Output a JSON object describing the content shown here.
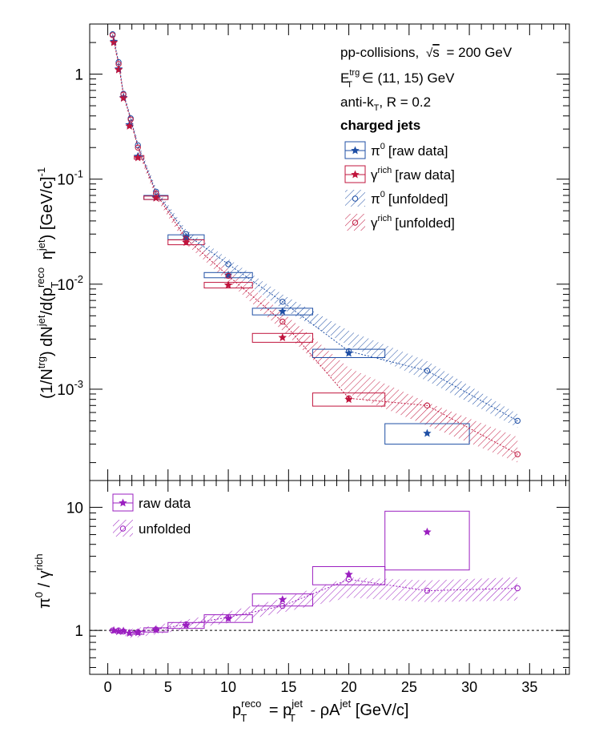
{
  "colors": {
    "pi0": "#1f4fa5",
    "gamma": "#c0143c",
    "ratio": "#9b1fc0",
    "axis": "#000000"
  },
  "info": {
    "line1": "pp-collisions,",
    "line1_energy": "= 200 GeV",
    "sqrt_s": "s",
    "trg_pre": "E",
    "trg_sub": "T",
    "trg_sup": "trg",
    "trg_post": "∈ (11, 15) GeV",
    "algo_pre": "anti-k",
    "algo_sub": "T",
    "algo_post": ", R = 0.2",
    "jets": "charged jets"
  },
  "legend_top": [
    {
      "sym": "π",
      "sup": "0",
      "txt": "[raw data]"
    },
    {
      "sym": "γ",
      "sup": "rich",
      "txt": "[raw data]"
    },
    {
      "sym": "π",
      "sup": "0",
      "txt": "[unfolded]"
    },
    {
      "sym": "γ",
      "sup": "rich",
      "txt": "[unfolded]"
    }
  ],
  "legend_bottom": [
    "raw data",
    "unfolded"
  ],
  "y_label_top": "(1/N^trg) dN^jet/d(p_T^reco η^jet) [GeV/c]^-1",
  "y_label_bottom": "π^0 / γ^rich",
  "x_label": "p_T^reco = p_T^jet - ρA^jet [GeV/c]",
  "chart_data": [
    {
      "type": "scatter",
      "xlim": [
        -1.5,
        38.3
      ],
      "ylim": [
        0.000135,
        3.0
      ],
      "yscale": "log",
      "x_ticks": [
        0,
        5,
        10,
        15,
        20,
        25,
        30,
        35
      ],
      "y_ticks": [
        {
          "value": 1,
          "label": "1"
        },
        {
          "value": 0.1,
          "label": "10^-1"
        },
        {
          "value": 0.01,
          "label": "10^-2"
        },
        {
          "value": 0.001,
          "label": "10^-3"
        }
      ],
      "series": [
        {
          "name": "π0 [raw data]",
          "marker": "star",
          "color_key": "pi0",
          "points": [
            {
              "x": 0.5,
              "y": 2.05
            },
            {
              "x": 0.9,
              "y": 1.12
            },
            {
              "x": 1.3,
              "y": 0.6
            },
            {
              "x": 1.8,
              "y": 0.33
            },
            {
              "x": 2.5,
              "y": 0.165
            },
            {
              "x": 4.0,
              "y": 0.067
            },
            {
              "x": 6.5,
              "y": 0.028
            },
            {
              "x": 10.0,
              "y": 0.0122
            },
            {
              "x": 14.5,
              "y": 0.0055
            },
            {
              "x": 20.0,
              "y": 0.0022
            },
            {
              "x": 26.5,
              "y": 0.00038
            }
          ],
          "boxes": [
            {
              "x1": 3.0,
              "x2": 5.0,
              "ylo": 0.064,
              "yhi": 0.07
            },
            {
              "x1": 5.0,
              "x2": 8.0,
              "ylo": 0.0265,
              "yhi": 0.0295
            },
            {
              "x1": 8.0,
              "x2": 12.0,
              "ylo": 0.0115,
              "yhi": 0.0129
            },
            {
              "x1": 12.0,
              "x2": 17.0,
              "ylo": 0.0051,
              "yhi": 0.0059
            },
            {
              "x1": 17.0,
              "x2": 23.0,
              "ylo": 0.002,
              "yhi": 0.0024
            },
            {
              "x1": 23.0,
              "x2": 30.0,
              "ylo": 0.0003,
              "yhi": 0.00047
            }
          ]
        },
        {
          "name": "γrich [raw data]",
          "marker": "star",
          "color_key": "gamma",
          "points": [
            {
              "x": 0.5,
              "y": 2.0
            },
            {
              "x": 0.9,
              "y": 1.1
            },
            {
              "x": 1.3,
              "y": 0.59
            },
            {
              "x": 1.8,
              "y": 0.32
            },
            {
              "x": 2.5,
              "y": 0.16
            },
            {
              "x": 4.0,
              "y": 0.066
            },
            {
              "x": 6.5,
              "y": 0.025
            },
            {
              "x": 10.0,
              "y": 0.0098
            },
            {
              "x": 14.5,
              "y": 0.0031
            },
            {
              "x": 20.0,
              "y": 0.0008
            }
          ],
          "boxes": [
            {
              "x1": 2.2,
              "x2": 3.0,
              "ylo": 0.155,
              "yhi": 0.168
            },
            {
              "x1": 3.0,
              "x2": 5.0,
              "ylo": 0.064,
              "yhi": 0.069
            },
            {
              "x1": 5.0,
              "x2": 8.0,
              "ylo": 0.0237,
              "yhi": 0.0264
            },
            {
              "x1": 8.0,
              "x2": 12.0,
              "ylo": 0.0092,
              "yhi": 0.0104
            },
            {
              "x1": 12.0,
              "x2": 17.0,
              "ylo": 0.0028,
              "yhi": 0.0034
            },
            {
              "x1": 17.0,
              "x2": 23.0,
              "ylo": 0.00069,
              "yhi": 0.00092
            }
          ]
        },
        {
          "name": "π0 [unfolded]",
          "marker": "open-circle",
          "color_key": "pi0",
          "points": [
            {
              "x": 0.4,
              "y": 2.4
            },
            {
              "x": 0.9,
              "y": 1.3
            },
            {
              "x": 1.3,
              "y": 0.65
            },
            {
              "x": 1.9,
              "y": 0.38
            },
            {
              "x": 2.5,
              "y": 0.21
            },
            {
              "x": 4.0,
              "y": 0.076
            },
            {
              "x": 6.5,
              "y": 0.03
            },
            {
              "x": 10.0,
              "y": 0.0155
            },
            {
              "x": 14.5,
              "y": 0.0068
            },
            {
              "x": 20.0,
              "y": 0.0023
            },
            {
              "x": 26.5,
              "y": 0.0015
            },
            {
              "x": 34.0,
              "y": 0.0005
            }
          ],
          "band": [
            {
              "x": 0.4,
              "lo": 2.2,
              "hi": 2.6
            },
            {
              "x": 0.9,
              "lo": 1.2,
              "hi": 1.42
            },
            {
              "x": 1.3,
              "lo": 0.6,
              "hi": 0.7
            },
            {
              "x": 1.9,
              "lo": 0.35,
              "hi": 0.41
            },
            {
              "x": 2.5,
              "lo": 0.19,
              "hi": 0.23
            },
            {
              "x": 4.0,
              "lo": 0.069,
              "hi": 0.083
            },
            {
              "x": 6.5,
              "lo": 0.027,
              "hi": 0.033
            },
            {
              "x": 10.0,
              "lo": 0.0135,
              "hi": 0.0175
            },
            {
              "x": 14.5,
              "lo": 0.0058,
              "hi": 0.008
            },
            {
              "x": 20.0,
              "lo": 0.0026,
              "hi": 0.0036
            },
            {
              "x": 26.5,
              "lo": 0.0012,
              "hi": 0.00185
            },
            {
              "x": 34.0,
              "lo": 0.00043,
              "hi": 0.00058
            }
          ]
        },
        {
          "name": "γrich [unfolded]",
          "marker": "open-circle",
          "color_key": "gamma",
          "points": [
            {
              "x": 0.4,
              "y": 2.35
            },
            {
              "x": 0.9,
              "y": 1.25
            },
            {
              "x": 1.3,
              "y": 0.64
            },
            {
              "x": 1.9,
              "y": 0.37
            },
            {
              "x": 2.5,
              "y": 0.2
            },
            {
              "x": 4.0,
              "y": 0.073
            },
            {
              "x": 6.5,
              "y": 0.027
            },
            {
              "x": 10.0,
              "y": 0.012
            },
            {
              "x": 14.5,
              "y": 0.0044
            },
            {
              "x": 20.0,
              "y": 0.00082
            },
            {
              "x": 26.5,
              "y": 0.0007
            },
            {
              "x": 34.0,
              "y": 0.00024
            }
          ],
          "band": [
            {
              "x": 0.4,
              "lo": 2.15,
              "hi": 2.55
            },
            {
              "x": 0.9,
              "lo": 1.15,
              "hi": 1.37
            },
            {
              "x": 1.3,
              "lo": 0.59,
              "hi": 0.69
            },
            {
              "x": 1.9,
              "lo": 0.34,
              "hi": 0.4
            },
            {
              "x": 2.5,
              "lo": 0.18,
              "hi": 0.22
            },
            {
              "x": 4.0,
              "lo": 0.066,
              "hi": 0.08
            },
            {
              "x": 6.5,
              "lo": 0.024,
              "hi": 0.03
            },
            {
              "x": 10.0,
              "lo": 0.0105,
              "hi": 0.0138
            },
            {
              "x": 14.5,
              "lo": 0.0036,
              "hi": 0.0054
            },
            {
              "x": 20.0,
              "lo": 0.0009,
              "hi": 0.0016
            },
            {
              "x": 26.5,
              "lo": 0.00045,
              "hi": 0.00075
            },
            {
              "x": 34.0,
              "lo": 0.0002,
              "hi": 0.00035
            }
          ]
        }
      ]
    },
    {
      "type": "scatter",
      "xlim": [
        -1.5,
        38.3
      ],
      "ylim": [
        0.44,
        16.5
      ],
      "yscale": "log",
      "x_ticks": [
        0,
        5,
        10,
        15,
        20,
        25,
        30,
        35
      ],
      "y_ticks": [
        {
          "value": 1,
          "label": "1"
        },
        {
          "value": 10,
          "label": "10"
        }
      ],
      "reference_line": 1,
      "series": [
        {
          "name": "raw data",
          "marker": "star",
          "color_key": "ratio",
          "points": [
            {
              "x": 0.5,
              "y": 1.0
            },
            {
              "x": 0.9,
              "y": 0.98
            },
            {
              "x": 1.3,
              "y": 0.99
            },
            {
              "x": 1.8,
              "y": 0.95
            },
            {
              "x": 2.5,
              "y": 0.96
            },
            {
              "x": 4.0,
              "y": 1.01
            },
            {
              "x": 6.5,
              "y": 1.1
            },
            {
              "x": 10.0,
              "y": 1.25
            },
            {
              "x": 14.5,
              "y": 1.78
            },
            {
              "x": 20.0,
              "y": 2.85
            },
            {
              "x": 26.5,
              "y": 6.3
            }
          ],
          "boxes": [
            {
              "x1": 2.2,
              "x2": 3.0,
              "ylo": 0.93,
              "yhi": 0.99
            },
            {
              "x1": 3.0,
              "x2": 5.0,
              "ylo": 0.97,
              "yhi": 1.05
            },
            {
              "x1": 5.0,
              "x2": 8.0,
              "ylo": 1.04,
              "yhi": 1.16
            },
            {
              "x1": 8.0,
              "x2": 12.0,
              "ylo": 1.16,
              "yhi": 1.34
            },
            {
              "x1": 12.0,
              "x2": 17.0,
              "ylo": 1.58,
              "yhi": 1.98
            },
            {
              "x1": 17.0,
              "x2": 23.0,
              "ylo": 2.35,
              "yhi": 3.3
            },
            {
              "x1": 23.0,
              "x2": 30.0,
              "ylo": 3.1,
              "yhi": 9.3
            }
          ]
        },
        {
          "name": "unfolded",
          "marker": "open-circle",
          "color_key": "ratio",
          "points": [
            {
              "x": 0.4,
              "y": 1.0
            },
            {
              "x": 0.9,
              "y": 1.0
            },
            {
              "x": 1.3,
              "y": 0.98
            },
            {
              "x": 1.9,
              "y": 0.96
            },
            {
              "x": 2.5,
              "y": 0.97
            },
            {
              "x": 4.0,
              "y": 1.02
            },
            {
              "x": 6.5,
              "y": 1.12
            },
            {
              "x": 10.0,
              "y": 1.28
            },
            {
              "x": 14.5,
              "y": 1.58
            },
            {
              "x": 20.0,
              "y": 2.6
            },
            {
              "x": 26.5,
              "y": 2.1
            },
            {
              "x": 34.0,
              "y": 2.2
            }
          ],
          "band": [
            {
              "x": 0.4,
              "lo": 0.95,
              "hi": 1.04
            },
            {
              "x": 0.9,
              "lo": 0.95,
              "hi": 1.03
            },
            {
              "x": 1.3,
              "lo": 0.91,
              "hi": 1.03
            },
            {
              "x": 1.9,
              "lo": 0.87,
              "hi": 1.03
            },
            {
              "x": 2.5,
              "lo": 0.88,
              "hi": 1.05
            },
            {
              "x": 4.0,
              "lo": 0.93,
              "hi": 1.1
            },
            {
              "x": 6.5,
              "lo": 1.02,
              "hi": 1.22
            },
            {
              "x": 10.0,
              "lo": 1.15,
              "hi": 1.42
            },
            {
              "x": 14.5,
              "lo": 1.4,
              "hi": 1.82
            },
            {
              "x": 20.0,
              "lo": 1.85,
              "hi": 2.7
            },
            {
              "x": 26.5,
              "lo": 1.7,
              "hi": 2.55
            },
            {
              "x": 34.0,
              "lo": 1.75,
              "hi": 2.7
            }
          ]
        }
      ]
    }
  ]
}
